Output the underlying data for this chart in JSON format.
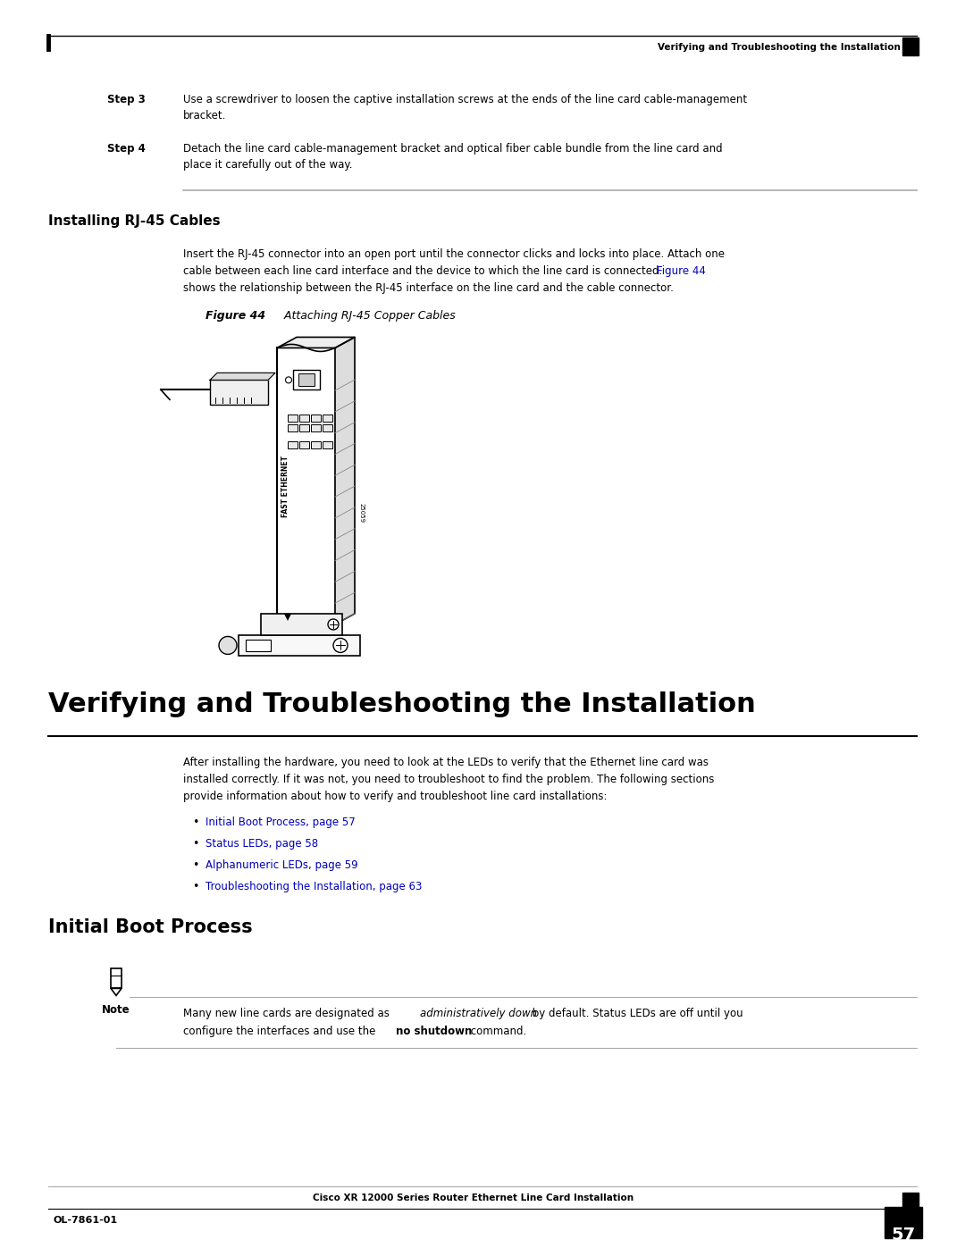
{
  "page_width": 10.8,
  "page_height": 13.97,
  "bg_color": "#ffffff",
  "header_text": "Verifying and Troubleshooting the Installation",
  "footer_left": "OL-7861-01",
  "footer_center": "Cisco XR 12000 Series Router Ethernet Line Card Installation",
  "footer_page": "57",
  "step3_label": "Step 3",
  "step3_text": "Use a screwdriver to loosen the captive installation screws at the ends of the line card cable-management\nbracket.",
  "step4_label": "Step 4",
  "step4_text": "Detach the line card cable-management bracket and optical fiber cable bundle from the line card and\nplace it carefully out of the way.",
  "section1_title": "Installing RJ-45 Cables",
  "body_line1": "Insert the RJ-45 connector into an open port until the connector clicks and locks into place. Attach one",
  "body_line2a": "cable between each line card interface and the device to which the line card is connected. ",
  "body_line2_link": "Figure 44",
  "body_line3": "shows the relationship between the RJ-45 interface on the line card and the cable connector.",
  "fig_caption_bold": "Figure 44",
  "fig_caption_italic": "    Attaching RJ-45 Copper Cables",
  "main_title": "Verifying and Troubleshooting the Installation",
  "main_body_line1": "After installing the hardware, you need to look at the LEDs to verify that the Ethernet line card was",
  "main_body_line2": "installed correctly. If it was not, you need to troubleshoot to find the problem. The following sections",
  "main_body_line3": "provide information about how to verify and troubleshoot line card installations:",
  "bullet1": "Initial Boot Process, page 57",
  "bullet2": "Status LEDs, page 58",
  "bullet3": "Alphanumeric LEDs, page 59",
  "bullet4": "Troubleshooting the Installation, page 63",
  "section2_title": "Initial Boot Process",
  "note_label": "Note",
  "note_line1a": "Many new line cards are designated as ",
  "note_line1_italic": "administratively down",
  "note_line1b": " by default. Status LEDs are off until you",
  "note_line2a": "configure the interfaces and use the ",
  "note_line2_bold": "no shutdown",
  "note_line2b": " command.",
  "link_color": "#0000BB",
  "text_color": "#000000",
  "gray_color": "#888888"
}
